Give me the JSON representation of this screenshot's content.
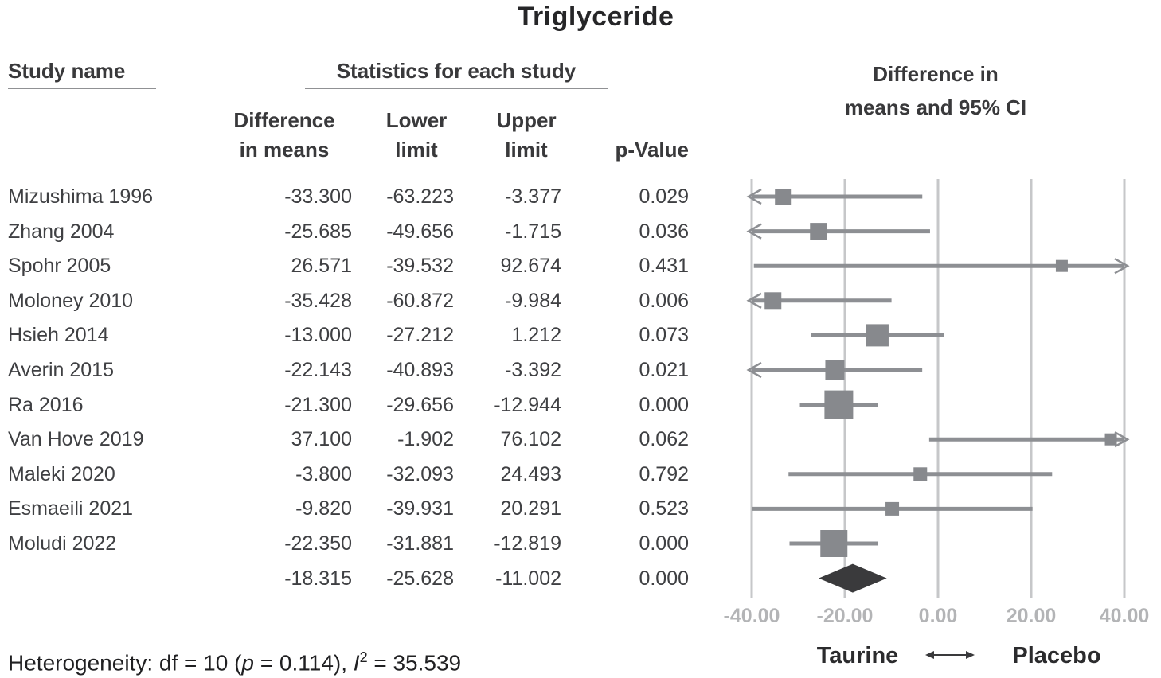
{
  "title": "Triglyceride",
  "table": {
    "study_col_header": "Study name",
    "stats_header": "Statistics for each study",
    "col_diff_line1": "Difference",
    "col_diff_line2": "in means",
    "col_lower_line1": "Lower",
    "col_lower_line2": "limit",
    "col_upper_line1": "Upper",
    "col_upper_line2": "limit",
    "col_pvalue": "p-Value"
  },
  "plot_header": {
    "line1": "Difference in",
    "line2": "means and 95% CI"
  },
  "chart_data": {
    "type": "forest",
    "title": "Triglyceride",
    "xlim": [
      -40,
      40
    ],
    "axis_tick_labels": [
      "-40.00",
      "-20.00",
      "0.00",
      "20.00",
      "40.00"
    ],
    "axis_tick_values": [
      -40,
      -20,
      0,
      20,
      40
    ],
    "grid": "vertical-lines",
    "marker_color": "#87898d",
    "line_color": "#8d8f93",
    "grid_color": "#c6c7c9",
    "diamond_color": "#3a3a3c",
    "studies": [
      {
        "name": "Mizushima 1996",
        "mean": "-33.300",
        "lower": "-63.223",
        "upper": "-3.377",
        "p": "0.029",
        "size": 20
      },
      {
        "name": "Zhang 2004",
        "mean": "-25.685",
        "lower": "-49.656",
        "upper": "-1.715",
        "p": "0.036",
        "size": 21
      },
      {
        "name": "Spohr 2005",
        "mean": "26.571",
        "lower": "-39.532",
        "upper": "92.674",
        "p": "0.431",
        "size": 15
      },
      {
        "name": "Moloney 2010",
        "mean": "-35.428",
        "lower": "-60.872",
        "upper": "-9.984",
        "p": "0.006",
        "size": 21
      },
      {
        "name": "Hsieh 2014",
        "mean": "-13.000",
        "lower": "-27.212",
        "upper": "1.212",
        "p": "0.073",
        "size": 28
      },
      {
        "name": "Averin 2015",
        "mean": "-22.143",
        "lower": "-40.893",
        "upper": "-3.392",
        "p": "0.021",
        "size": 24
      },
      {
        "name": "Ra 2016",
        "mean": "-21.300",
        "lower": "-29.656",
        "upper": "-12.944",
        "p": "0.000",
        "size": 36
      },
      {
        "name": "Van Hove 2019",
        "mean": "37.100",
        "lower": "-1.902",
        "upper": "76.102",
        "p": "0.062",
        "size": 15
      },
      {
        "name": "Maleki 2020",
        "mean": "-3.800",
        "lower": "-32.093",
        "upper": "24.493",
        "p": "0.792",
        "size": 17
      },
      {
        "name": "Esmaeili 2021",
        "mean": "-9.820",
        "lower": "-39.931",
        "upper": "20.291",
        "p": "0.523",
        "size": 17
      },
      {
        "name": "Moludi 2022",
        "mean": "-22.350",
        "lower": "-31.881",
        "upper": "-12.819",
        "p": "0.000",
        "size": 34
      }
    ],
    "overall": {
      "name": "",
      "mean": "-18.315",
      "lower": "-25.628",
      "upper": "-11.002",
      "p": "0.000"
    }
  },
  "footer": {
    "left_label": "Taurine",
    "right_label": "Placebo"
  },
  "heterogeneity": {
    "prefix": "Heterogeneity: df = 10 (",
    "p_symbol": "p",
    "mid": " = 0.114), ",
    "i_symbol": "I",
    "i_sup": "2",
    "suffix": " = 35.539"
  }
}
